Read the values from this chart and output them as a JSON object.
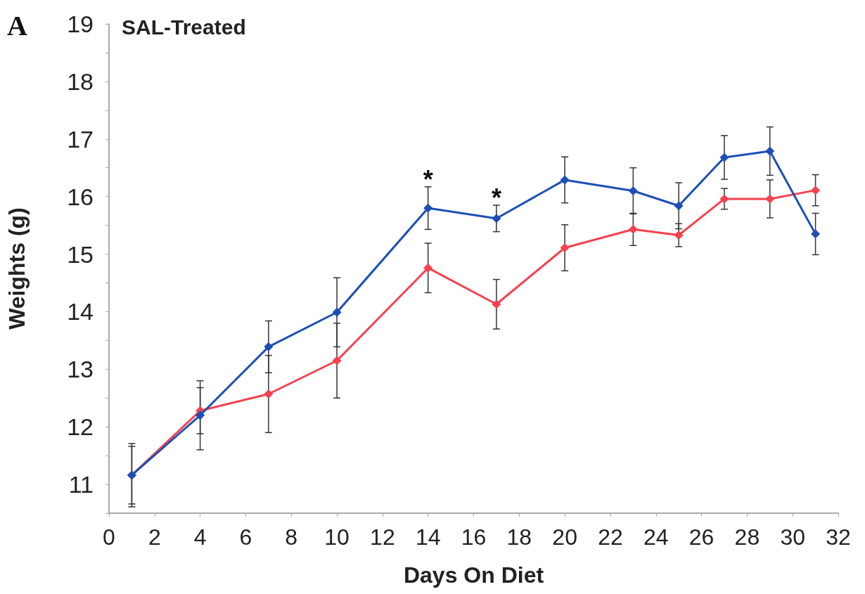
{
  "chart_data": {
    "type": "line",
    "title": "SAL-Treated",
    "xlabel": "Days On Diet",
    "ylabel": "Weights (g)",
    "x": [
      1,
      4,
      7,
      10,
      14,
      17,
      20,
      23,
      25,
      27,
      29,
      31
    ],
    "series": [
      {
        "color": "#1c4fb5",
        "values": [
          11.16,
          12.2,
          13.39,
          13.99,
          15.8,
          15.62,
          16.29,
          16.1,
          15.84,
          16.68,
          16.79,
          15.35
        ],
        "errors": [
          0.55,
          0.6,
          0.45,
          0.6,
          0.37,
          0.23,
          0.4,
          0.4,
          0.4,
          0.38,
          0.42,
          0.36
        ]
      },
      {
        "color": "#f2434f",
        "values": [
          11.16,
          12.28,
          12.57,
          13.15,
          14.76,
          14.13,
          15.11,
          15.43,
          15.33,
          15.96,
          15.96,
          16.11
        ],
        "errors": [
          0.5,
          0.4,
          0.67,
          0.65,
          0.43,
          0.43,
          0.4,
          0.28,
          0.2,
          0.18,
          0.33,
          0.27
        ]
      }
    ],
    "xlim": [
      0,
      32
    ],
    "xticks": [
      0,
      2,
      4,
      6,
      8,
      10,
      12,
      14,
      16,
      18,
      20,
      22,
      24,
      26,
      28,
      30,
      32
    ],
    "ylim": [
      10.5,
      19
    ],
    "yticks": [
      {
        "value": 10.5,
        "label": null
      },
      11,
      {
        "value": 11.5,
        "label": null
      },
      12,
      {
        "value": 12.5,
        "label": null
      },
      13,
      {
        "value": 13.5,
        "label": null
      },
      14,
      {
        "value": 14.5,
        "label": null
      },
      15,
      {
        "value": 15.5,
        "label": null
      },
      16,
      {
        "value": 16.5,
        "label": null
      },
      17,
      {
        "value": 17.5,
        "label": null
      },
      18,
      {
        "value": 18.5,
        "label": null
      },
      19
    ],
    "annotations": [
      "A",
      {
        "text": "*",
        "x": 14,
        "y": 15.8
      },
      {
        "text": "*",
        "x": 17,
        "y": 15.62
      }
    ],
    "grid": false,
    "marker": "diamond",
    "line_style": "solid"
  }
}
